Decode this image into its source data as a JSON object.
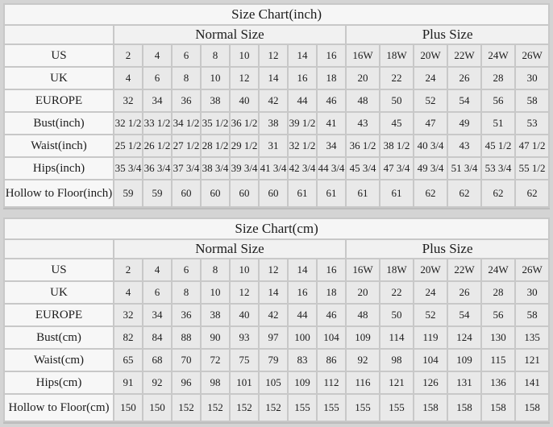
{
  "colors": {
    "page_background": "#d4d4d4",
    "grid_lines": "#c8c8c8",
    "title_row_background": "#f6f6f6",
    "group_row_background": "#f1f1f1",
    "label_column_background": "#f7f7f7",
    "data_cell_background": "#e9e9e9",
    "text": "#1c1c1c"
  },
  "chart_data": [
    {
      "type": "table",
      "unit": "inch",
      "title": "Size Chart(inch)",
      "group_headers": {
        "normal": "Normal Size",
        "plus": "Plus Size"
      },
      "rows": [
        {
          "label": "US",
          "normal": [
            "2",
            "4",
            "6",
            "8",
            "10",
            "12",
            "14",
            "16"
          ],
          "plus": [
            "16W",
            "18W",
            "20W",
            "22W",
            "24W",
            "26W"
          ]
        },
        {
          "label": "UK",
          "normal": [
            "4",
            "6",
            "8",
            "10",
            "12",
            "14",
            "16",
            "18"
          ],
          "plus": [
            "20",
            "22",
            "24",
            "26",
            "28",
            "30"
          ]
        },
        {
          "label": "EUROPE",
          "normal": [
            "32",
            "34",
            "36",
            "38",
            "40",
            "42",
            "44",
            "46"
          ],
          "plus": [
            "48",
            "50",
            "52",
            "54",
            "56",
            "58"
          ]
        },
        {
          "label": "Bust(inch)",
          "normal": [
            "32 1/2",
            "33 1/2",
            "34 1/2",
            "35 1/2",
            "36 1/2",
            "38",
            "39 1/2",
            "41"
          ],
          "plus": [
            "43",
            "45",
            "47",
            "49",
            "51",
            "53"
          ]
        },
        {
          "label": "Waist(inch)",
          "normal": [
            "25 1/2",
            "26 1/2",
            "27 1/2",
            "28 1/2",
            "29 1/2",
            "31",
            "32 1/2",
            "34"
          ],
          "plus": [
            "36 1/2",
            "38 1/2",
            "40 3/4",
            "43",
            "45 1/2",
            "47 1/2"
          ]
        },
        {
          "label": "Hips(inch)",
          "normal": [
            "35 3/4",
            "36 3/4",
            "37 3/4",
            "38 3/4",
            "39 3/4",
            "41 3/4",
            "42 3/4",
            "44 3/4"
          ],
          "plus": [
            "45 3/4",
            "47 3/4",
            "49 3/4",
            "51 3/4",
            "53 3/4",
            "55 1/2"
          ]
        },
        {
          "label": "Hollow to Floor(inch)",
          "normal": [
            "59",
            "59",
            "60",
            "60",
            "60",
            "60",
            "61",
            "61"
          ],
          "plus": [
            "61",
            "61",
            "62",
            "62",
            "62",
            "62"
          ]
        }
      ]
    },
    {
      "type": "table",
      "unit": "cm",
      "title": "Size Chart(cm)",
      "group_headers": {
        "normal": "Normal Size",
        "plus": "Plus Size"
      },
      "rows": [
        {
          "label": "US",
          "normal": [
            "2",
            "4",
            "6",
            "8",
            "10",
            "12",
            "14",
            "16"
          ],
          "plus": [
            "16W",
            "18W",
            "20W",
            "22W",
            "24W",
            "26W"
          ]
        },
        {
          "label": "UK",
          "normal": [
            "4",
            "6",
            "8",
            "10",
            "12",
            "14",
            "16",
            "18"
          ],
          "plus": [
            "20",
            "22",
            "24",
            "26",
            "28",
            "30"
          ]
        },
        {
          "label": "EUROPE",
          "normal": [
            "32",
            "34",
            "36",
            "38",
            "40",
            "42",
            "44",
            "46"
          ],
          "plus": [
            "48",
            "50",
            "52",
            "54",
            "56",
            "58"
          ]
        },
        {
          "label": "Bust(cm)",
          "normal": [
            "82",
            "84",
            "88",
            "90",
            "93",
            "97",
            "100",
            "104"
          ],
          "plus": [
            "109",
            "114",
            "119",
            "124",
            "130",
            "135"
          ]
        },
        {
          "label": "Waist(cm)",
          "normal": [
            "65",
            "68",
            "70",
            "72",
            "75",
            "79",
            "83",
            "86"
          ],
          "plus": [
            "92",
            "98",
            "104",
            "109",
            "115",
            "121"
          ]
        },
        {
          "label": "Hips(cm)",
          "normal": [
            "91",
            "92",
            "96",
            "98",
            "101",
            "105",
            "109",
            "112"
          ],
          "plus": [
            "116",
            "121",
            "126",
            "131",
            "136",
            "141"
          ]
        },
        {
          "label": "Hollow to Floor(cm)",
          "normal": [
            "150",
            "150",
            "152",
            "152",
            "152",
            "152",
            "155",
            "155"
          ],
          "plus": [
            "155",
            "155",
            "158",
            "158",
            "158",
            "158"
          ]
        }
      ]
    }
  ]
}
